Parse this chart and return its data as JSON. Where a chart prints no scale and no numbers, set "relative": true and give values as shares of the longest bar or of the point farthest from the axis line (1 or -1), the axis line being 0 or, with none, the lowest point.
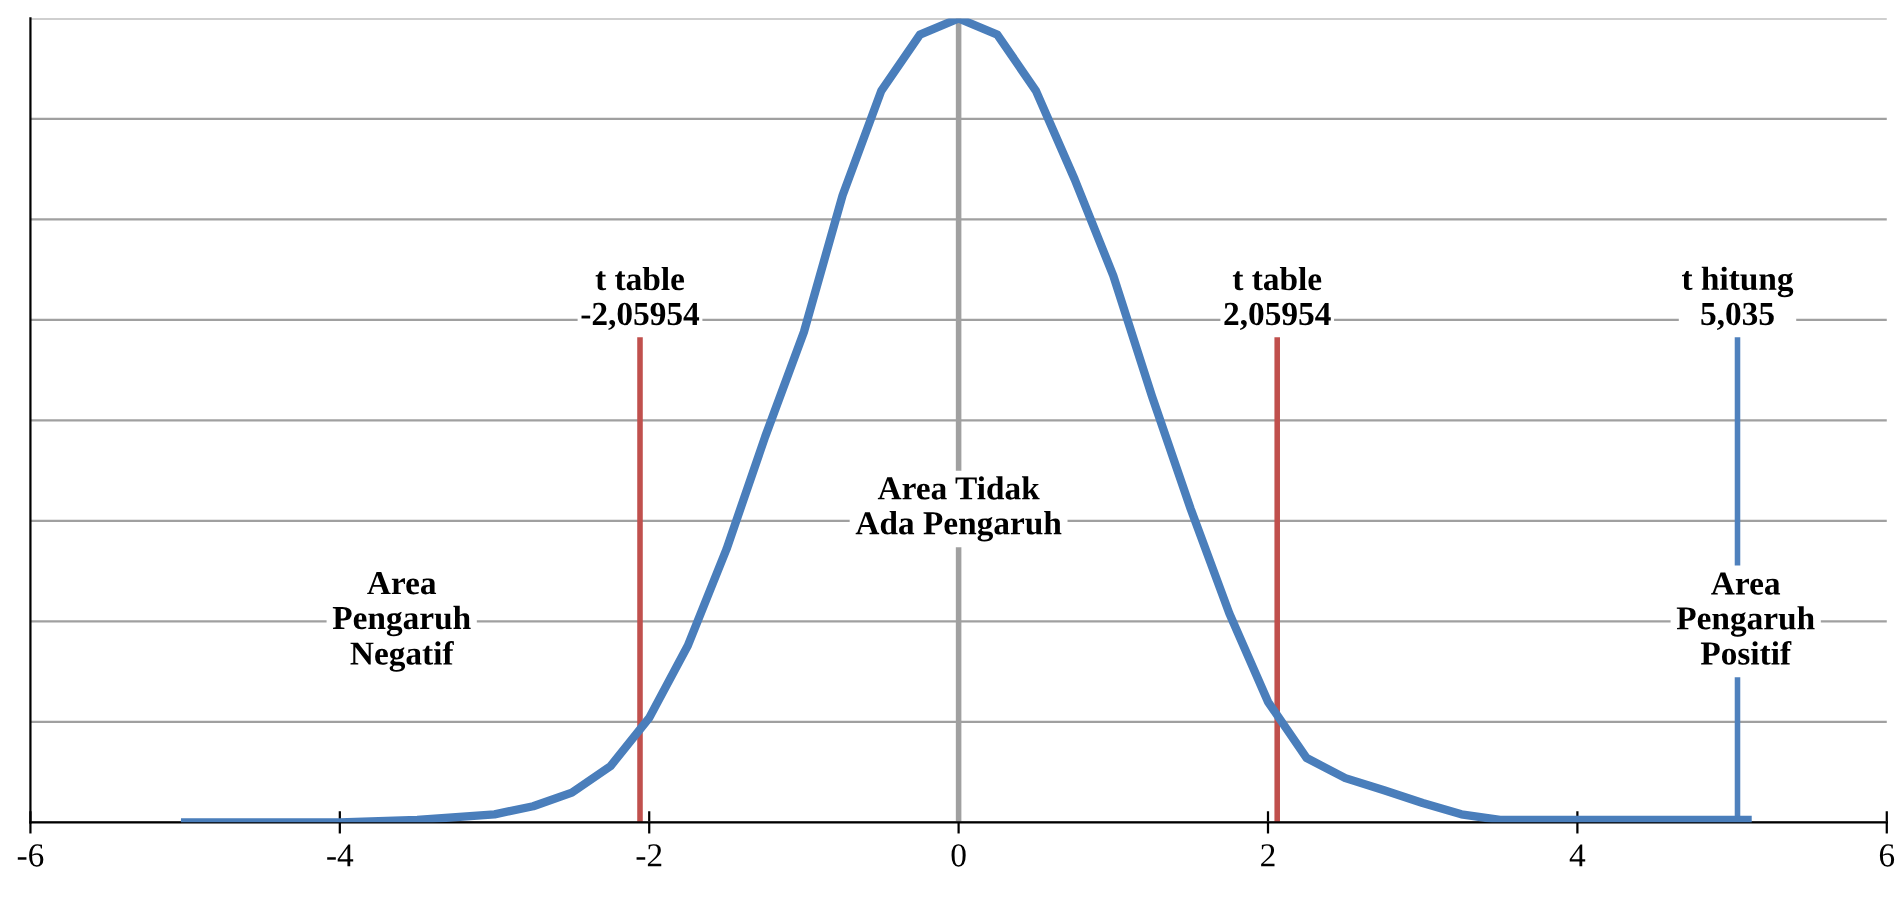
{
  "chart_data": {
    "type": "line",
    "relative": true,
    "xlim": [
      -6,
      6
    ],
    "xticks": [
      -6,
      -4,
      -2,
      0,
      2,
      4,
      6
    ],
    "grid": "y",
    "marker": "none",
    "line_style": "solid",
    "series": [
      {
        "color": "#4a7ebb",
        "x": [
          -5,
          -4.5,
          -4,
          -3.5,
          -3,
          -2.75,
          -2.5,
          -2.25,
          -2,
          -1.75,
          -1.5,
          -1.25,
          -1,
          -0.75,
          -0.5,
          -0.25,
          0,
          0.25,
          0.5,
          0.75,
          1,
          1.25,
          1.5,
          1.75,
          2,
          2.25,
          2.5,
          2.75,
          3,
          3.25,
          3.5,
          4,
          4.5,
          5.1
        ],
        "values": [
          0,
          0,
          0,
          0.003,
          0.01,
          0.02,
          0.037,
          0.07,
          0.13,
          0.22,
          0.34,
          0.48,
          0.61,
          0.78,
          0.91,
          0.98,
          1,
          0.98,
          0.91,
          0.8,
          0.68,
          0.53,
          0.39,
          0.26,
          0.15,
          0.08,
          0.055,
          0.04,
          0.024,
          0.01,
          0.003,
          0.003,
          0.003,
          0.003
        ]
      }
    ],
    "ref_lines": [
      {
        "axis": "x",
        "value": 0,
        "color": "#a0a0a0"
      },
      {
        "axis": "x",
        "value": -2.05954,
        "label": "t table\n-2,05954",
        "color": "#c0504d"
      },
      {
        "axis": "x",
        "value": 2.05954,
        "label": "t table\n2,05954",
        "color": "#c0504d"
      },
      {
        "axis": "x",
        "value": 5.035,
        "label": "t hitung\n5,035",
        "color": "#4f81bd"
      }
    ],
    "annotations": [
      "Area\nPengaruh\nNegatif",
      "Area Tidak\nAda Pengaruh",
      "Area\nPengaruh\nPositif"
    ]
  }
}
